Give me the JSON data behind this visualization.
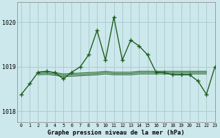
{
  "title": "Graphe pression niveau de la mer (hPa)",
  "bg_color": "#cce8ec",
  "grid_color": "#aacccc",
  "line_color": "#1a5c1a",
  "xlim": [
    -0.5,
    23
  ],
  "ylim": [
    1017.75,
    1020.45
  ],
  "yticks": [
    1018,
    1019,
    1020
  ],
  "xticks": [
    0,
    1,
    2,
    3,
    4,
    5,
    6,
    7,
    8,
    9,
    10,
    11,
    12,
    13,
    14,
    15,
    16,
    17,
    18,
    19,
    20,
    21,
    22,
    23
  ],
  "main_x": [
    0,
    1,
    2,
    3,
    4,
    5,
    6,
    7,
    8,
    9,
    10,
    11,
    12,
    13,
    14,
    15,
    16,
    17,
    18,
    19,
    20,
    21,
    22,
    23
  ],
  "main_y": [
    1018.38,
    1018.62,
    1018.88,
    1018.9,
    1018.87,
    1018.73,
    1018.88,
    1019.0,
    1019.27,
    1019.82,
    1019.15,
    1020.12,
    1019.15,
    1019.6,
    1019.47,
    1019.27,
    1018.88,
    1018.87,
    1018.82,
    1018.82,
    1018.82,
    1018.68,
    1018.38,
    1019.0
  ],
  "flat_lines": [
    {
      "x": [
        2,
        3,
        4,
        5,
        6,
        7,
        8,
        9,
        10,
        11,
        12,
        13,
        14,
        15,
        16,
        17,
        18,
        19,
        20,
        21,
        22
      ],
      "y": [
        1018.88,
        1018.89,
        1018.87,
        1018.84,
        1018.85,
        1018.86,
        1018.87,
        1018.88,
        1018.9,
        1018.88,
        1018.88,
        1018.88,
        1018.9,
        1018.9,
        1018.9,
        1018.9,
        1018.9,
        1018.9,
        1018.9,
        1018.9,
        1018.9
      ]
    },
    {
      "x": [
        2,
        3,
        4,
        5,
        6,
        7,
        8,
        9,
        10,
        11,
        12,
        13,
        14,
        15,
        16,
        17,
        18,
        19,
        20,
        21,
        22
      ],
      "y": [
        1018.85,
        1018.86,
        1018.84,
        1018.81,
        1018.82,
        1018.83,
        1018.84,
        1018.85,
        1018.87,
        1018.85,
        1018.85,
        1018.85,
        1018.87,
        1018.87,
        1018.87,
        1018.87,
        1018.87,
        1018.87,
        1018.87,
        1018.87,
        1018.87
      ]
    },
    {
      "x": [
        2,
        3,
        4,
        5,
        6,
        7,
        8,
        9,
        10,
        11,
        12,
        13,
        14,
        15,
        16,
        17,
        18,
        19,
        20,
        21,
        22
      ],
      "y": [
        1018.82,
        1018.83,
        1018.81,
        1018.78,
        1018.79,
        1018.8,
        1018.81,
        1018.82,
        1018.84,
        1018.82,
        1018.82,
        1018.82,
        1018.84,
        1018.84,
        1018.84,
        1018.84,
        1018.84,
        1018.84,
        1018.84,
        1018.84,
        1018.84
      ]
    }
  ]
}
